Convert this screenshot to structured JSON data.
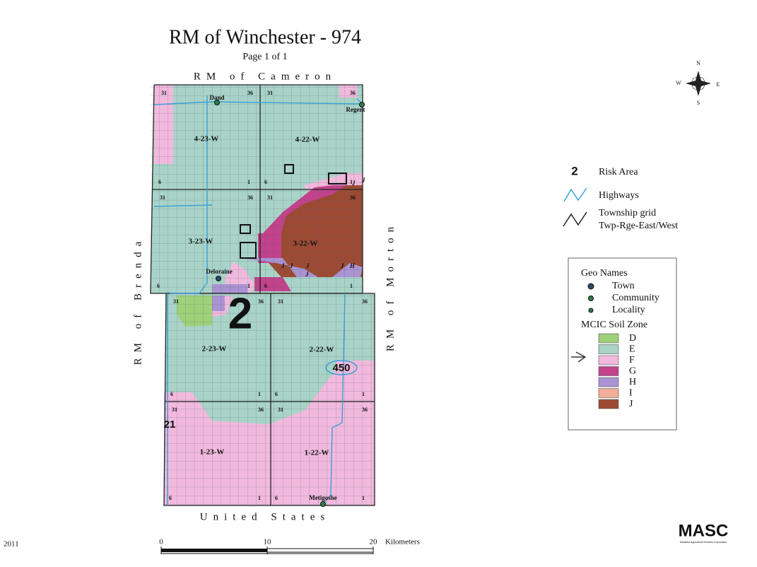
{
  "title": "RM of Winchester - 974",
  "subtitle": "Page 1 of 1",
  "borders": {
    "north": "RM of Cameron",
    "west": "RM of Brenda",
    "east": "RM of Morton",
    "south": "United States"
  },
  "townships": [
    {
      "label": "4-23-W",
      "corners": [
        "31",
        "36",
        "6",
        "1"
      ]
    },
    {
      "label": "4-22-W",
      "corners": [
        "31",
        "36",
        "6",
        "1"
      ]
    },
    {
      "label": "3-23-W",
      "corners": [
        "31",
        "36",
        "6",
        "1"
      ]
    },
    {
      "label": "3-22-W",
      "corners": [
        "31",
        "36",
        "6",
        "1"
      ]
    },
    {
      "label": "2-23-W",
      "corners": [
        "31",
        "36",
        "6",
        "1"
      ]
    },
    {
      "label": "2-22-W",
      "corners": [
        "31",
        "36",
        "6",
        "1"
      ]
    },
    {
      "label": "1-23-W",
      "corners": [
        "31",
        "36",
        "6",
        "1"
      ]
    },
    {
      "label": "1-22-W",
      "corners": [
        "31",
        "36",
        "6",
        "1"
      ]
    }
  ],
  "places": [
    "Dand",
    "Regent",
    "Deloraine",
    "Metigoshe"
  ],
  "highway_numbers": [
    "450",
    "21"
  ],
  "soil_marks": [
    "J",
    "J",
    "J",
    "J",
    "J",
    "H",
    "J",
    "J"
  ],
  "risk_area": "2",
  "legend": {
    "risk_symbol": "2",
    "risk_label": "Risk Area",
    "highways": "Highways",
    "grid": [
      "Township grid",
      "Twp-Rge-East/West"
    ]
  },
  "geo_names": {
    "title": "Geo Names",
    "items": [
      "Town",
      "Community",
      "Locality"
    ]
  },
  "soil_zone": {
    "title": "MCIC Soil Zone",
    "zones": [
      {
        "label": "D",
        "color": "#9fd07a"
      },
      {
        "label": "E",
        "color": "#a9d3c8"
      },
      {
        "label": "F",
        "color": "#f1b9dd"
      },
      {
        "label": "G",
        "color": "#c2428c"
      },
      {
        "label": "H",
        "color": "#a993d2"
      },
      {
        "label": "I",
        "color": "#f3ae98"
      },
      {
        "label": "J",
        "color": "#9c4a33"
      }
    ]
  },
  "compass": [
    "N",
    "E",
    "S",
    "W"
  ],
  "scale": {
    "ticks": [
      0,
      10,
      20
    ],
    "unit": "Kilometers"
  },
  "year": "2011",
  "logo": {
    "name": "MASC",
    "tagline": "Manitoba Agricultural Services Corporation"
  }
}
